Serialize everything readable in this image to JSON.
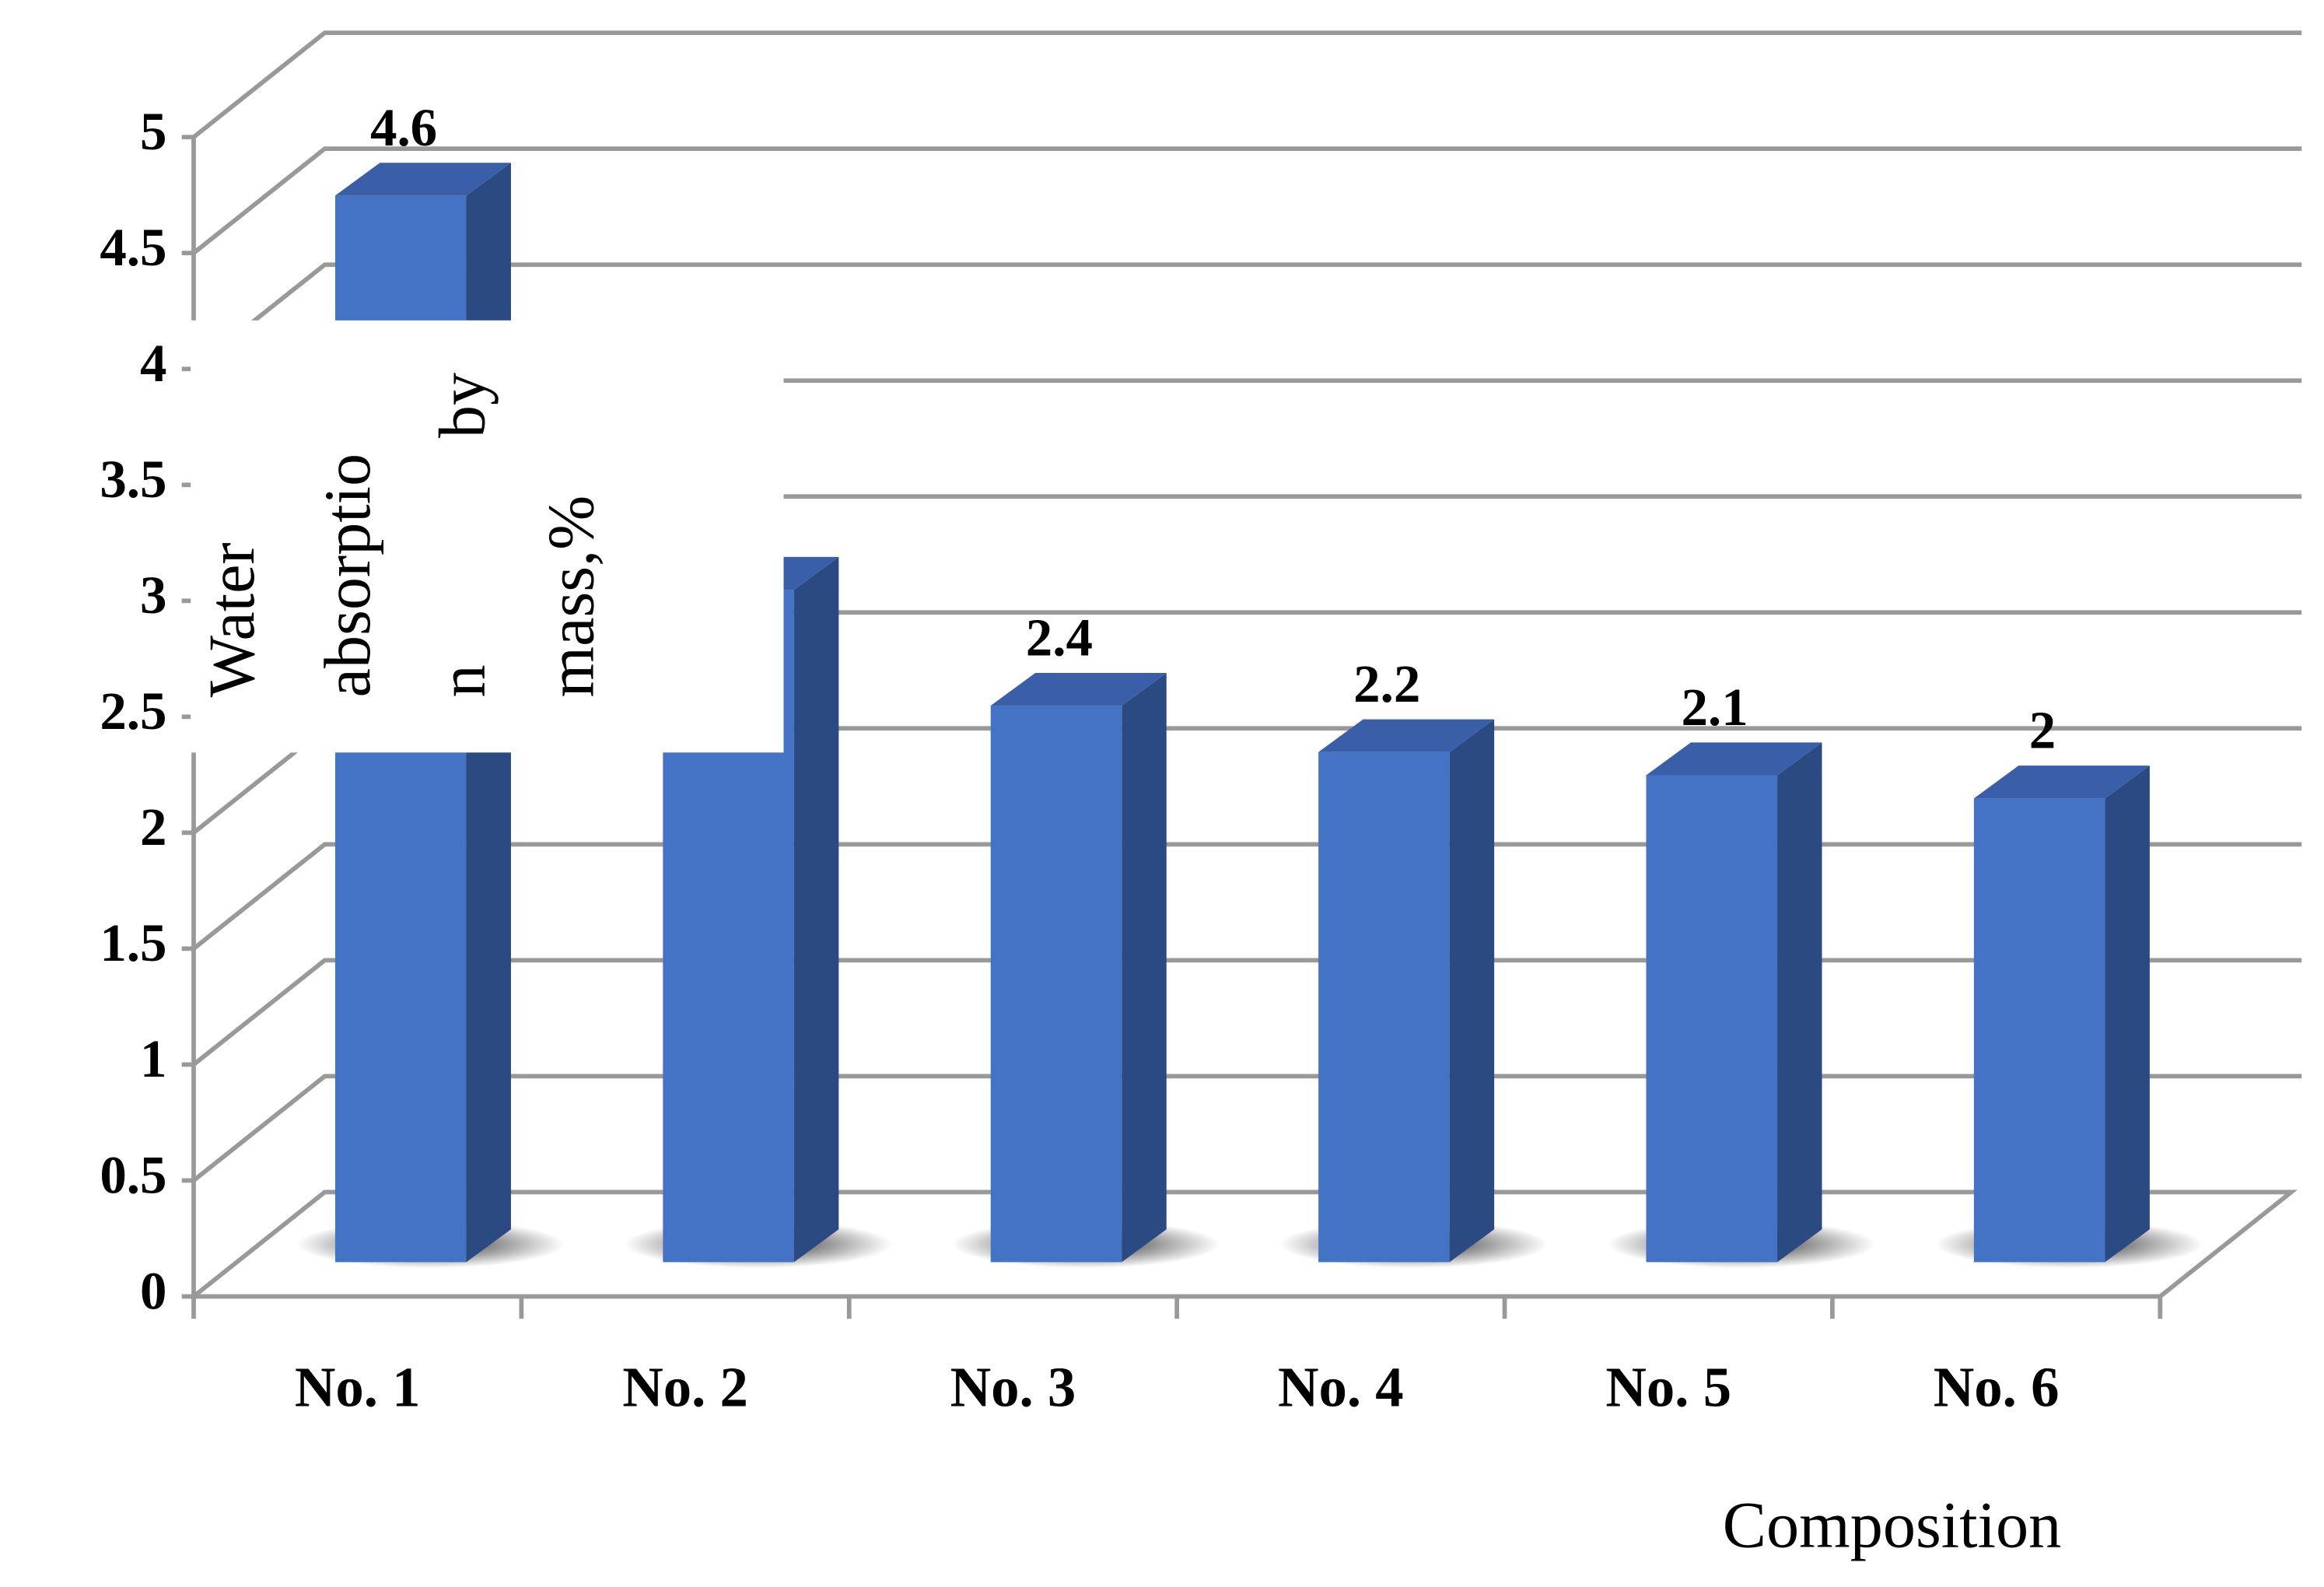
{
  "chart_data": {
    "type": "bar3d",
    "categories": [
      "No. 1",
      "No. 2",
      "No. 3",
      "No. 4",
      "No. 5",
      "No. 6"
    ],
    "values": [
      4.6,
      2.9,
      2.4,
      2.2,
      2.1,
      2
    ],
    "color": "#4472c4",
    "side_color": "#2c4a82",
    "ylim": [
      0,
      5
    ],
    "yticks": [
      0,
      0.5,
      1,
      1.5,
      2,
      2.5,
      3,
      3.5,
      4,
      4.5,
      5
    ],
    "grid": true,
    "ylabel": [
      "Water",
      "absorptio",
      "n",
      "by",
      "mass,%"
    ],
    "xlabel": "Composition"
  }
}
